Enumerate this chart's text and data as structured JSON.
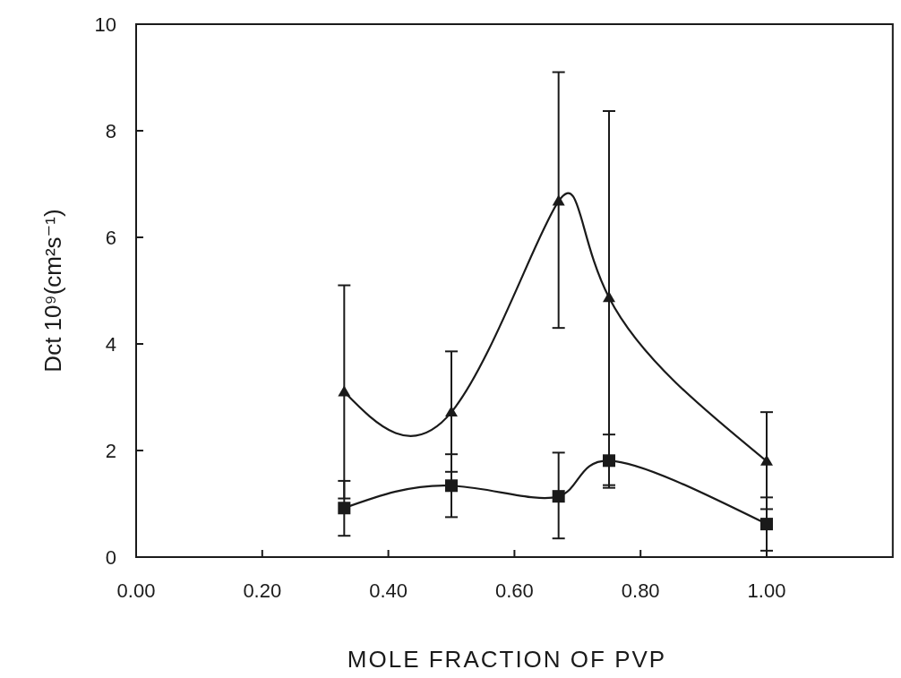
{
  "chart_data": {
    "type": "line",
    "xlabel": "MOLE FRACTION OF PVP",
    "ylabel": "Dct  10⁹(cm²s⁻¹)",
    "x": [
      0.33,
      0.5,
      0.67,
      0.75,
      1.0
    ],
    "xlim": [
      0,
      1.2
    ],
    "xticks": [
      {
        "value": 0,
        "label": "0.00"
      },
      {
        "value": 0.2,
        "label": "0.20"
      },
      {
        "value": 0.4,
        "label": "0.40"
      },
      {
        "value": 0.6,
        "label": "0.60"
      },
      {
        "value": 0.8,
        "label": "0.80"
      },
      {
        "value": 1.0,
        "label": "1.00"
      }
    ],
    "ylim": [
      0,
      10
    ],
    "yticks": [
      0,
      2,
      4,
      6,
      8,
      10
    ],
    "grid": false,
    "series": [
      {
        "color": "#1a1a1a",
        "marker": "triangle",
        "values": [
          3.1,
          2.72,
          6.68,
          4.87,
          1.8
        ],
        "errors": [
          [
            1.1,
            5.1
          ],
          [
            1.6,
            3.86
          ],
          [
            4.3,
            9.1
          ],
          [
            1.35,
            8.37
          ],
          [
            0.9,
            2.72
          ]
        ]
      },
      {
        "color": "#1a1a1a",
        "marker": "square",
        "values": [
          0.92,
          1.34,
          1.14,
          1.81,
          0.62
        ],
        "errors": [
          [
            0.4,
            1.43
          ],
          [
            0.75,
            1.93
          ],
          [
            0.35,
            1.96
          ],
          [
            1.3,
            2.3
          ],
          [
            0.12,
            1.12
          ]
        ]
      }
    ]
  }
}
